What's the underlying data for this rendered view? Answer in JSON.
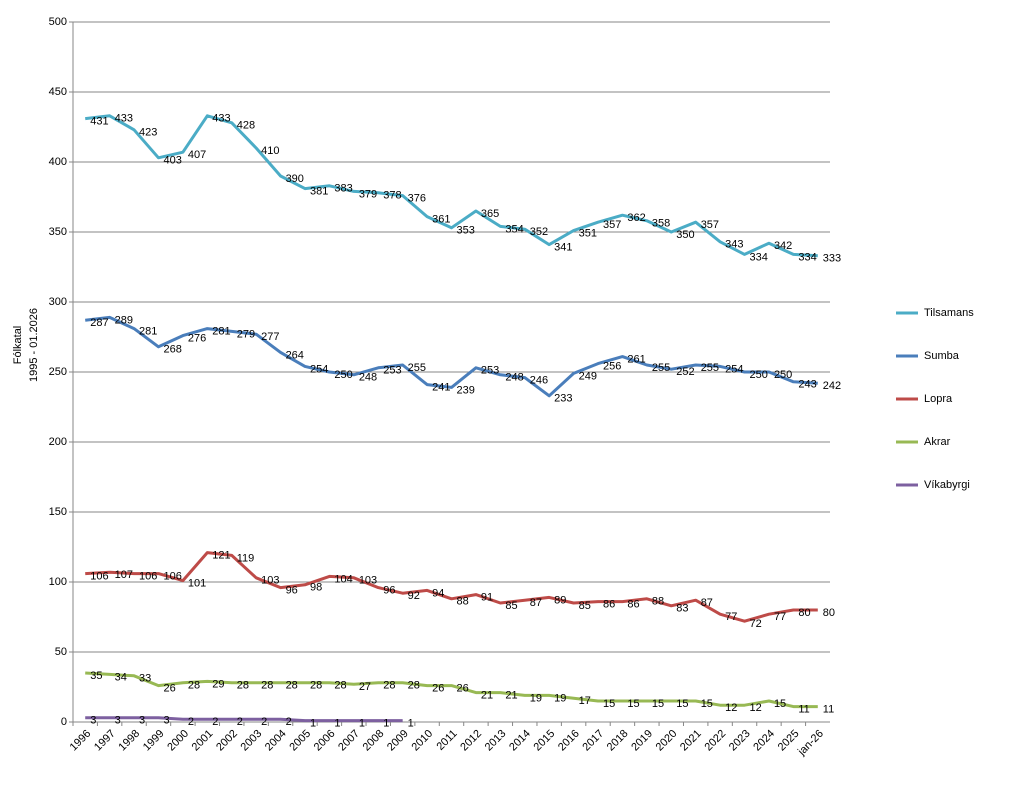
{
  "chart_data": {
    "type": "line",
    "y_label": [
      "Fólkatal",
      "1995 - 01.2026"
    ],
    "categories": [
      "1996",
      "1997",
      "1998",
      "1999",
      "2000",
      "2001",
      "2002",
      "2003",
      "2004",
      "2005",
      "2006",
      "2007",
      "2008",
      "2009",
      "2010",
      "2011",
      "2012",
      "2013",
      "2014",
      "2015",
      "2016",
      "2017",
      "2018",
      "2019",
      "2020",
      "2021",
      "2022",
      "2023",
      "2024",
      "2025",
      "jan-26"
    ],
    "series": [
      {
        "name": "Tilsamans",
        "color": "#4bacc6",
        "values": [
          431,
          433,
          423,
          403,
          407,
          433,
          428,
          410,
          390,
          381,
          383,
          379,
          378,
          376,
          361,
          353,
          365,
          354,
          352,
          341,
          351,
          357,
          362,
          358,
          350,
          357,
          343,
          334,
          342,
          334,
          333
        ]
      },
      {
        "name": "Sumba",
        "color": "#4a7ebb",
        "values": [
          287,
          289,
          281,
          268,
          276,
          281,
          279,
          277,
          264,
          254,
          250,
          248,
          253,
          255,
          241,
          239,
          253,
          248,
          246,
          233,
          249,
          256,
          261,
          255,
          252,
          255,
          254,
          250,
          250,
          243,
          242
        ]
      },
      {
        "name": "Lopra",
        "color": "#be4b48",
        "values": [
          106,
          107,
          106,
          106,
          101,
          121,
          119,
          103,
          96,
          98,
          104,
          103,
          96,
          92,
          94,
          88,
          91,
          85,
          87,
          89,
          85,
          86,
          86,
          88,
          83,
          87,
          77,
          72,
          77,
          80,
          80
        ]
      },
      {
        "name": "Akrar",
        "color": "#98b954",
        "values": [
          35,
          34,
          33,
          26,
          28,
          29,
          28,
          28,
          28,
          28,
          28,
          27,
          28,
          28,
          26,
          26,
          21,
          21,
          19,
          19,
          17,
          15,
          15,
          15,
          15,
          15,
          12,
          12,
          15,
          11,
          11
        ]
      },
      {
        "name": "Víkabyrgi",
        "color": "#7d60a0",
        "values": [
          3,
          3,
          3,
          3,
          2,
          2,
          2,
          2,
          2,
          1,
          1,
          1,
          1,
          1,
          null,
          null,
          null,
          null,
          null,
          null,
          null,
          null,
          null,
          null,
          null,
          null,
          null,
          null,
          null,
          null,
          null
        ]
      }
    ],
    "ylim": [
      0,
      500
    ],
    "yticks": [
      0,
      50,
      100,
      150,
      200,
      250,
      300,
      350,
      400,
      450,
      500
    ],
    "grid": true,
    "legend": "right"
  }
}
